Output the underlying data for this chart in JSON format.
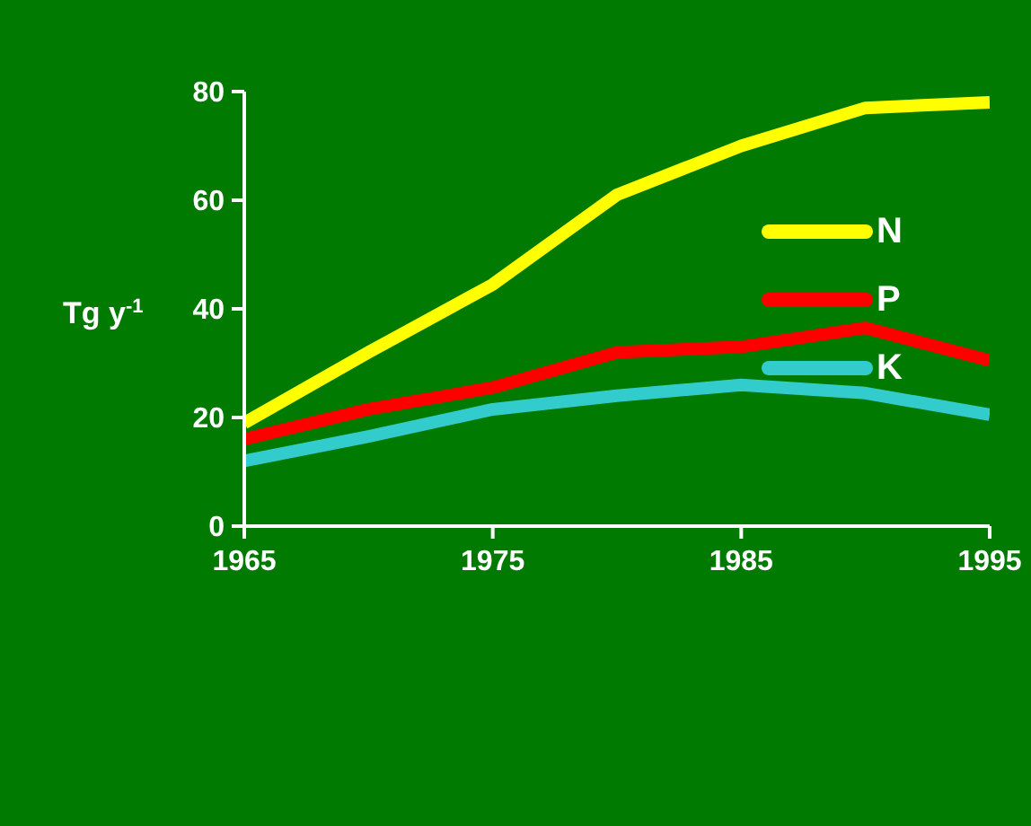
{
  "chart_data": {
    "type": "line",
    "ylabel": "Tg y$^{-1}$",
    "x": [
      1965,
      1970,
      1975,
      1980,
      1985,
      1990,
      1995
    ],
    "series": [
      {
        "name": "N",
        "color": "#ffff00",
        "values": [
          19,
          32,
          44.5,
          61,
          70,
          77,
          78
        ]
      },
      {
        "name": "P",
        "color": "#ff0000",
        "values": [
          16,
          21.5,
          25.5,
          32,
          33,
          36.5,
          30.5
        ]
      },
      {
        "name": "K",
        "color": "#33cccc",
        "values": [
          12,
          16.5,
          21.5,
          24,
          26,
          24.5,
          20.5
        ]
      }
    ],
    "xlim": [
      1965,
      1995
    ],
    "xticks": [
      1965,
      1975,
      1985,
      1995
    ],
    "ylim": [
      0,
      80
    ],
    "yticks": [
      0,
      20,
      40,
      60,
      80
    ],
    "grid": false,
    "legend": "top right",
    "marker": "none",
    "line_style": "solid"
  }
}
